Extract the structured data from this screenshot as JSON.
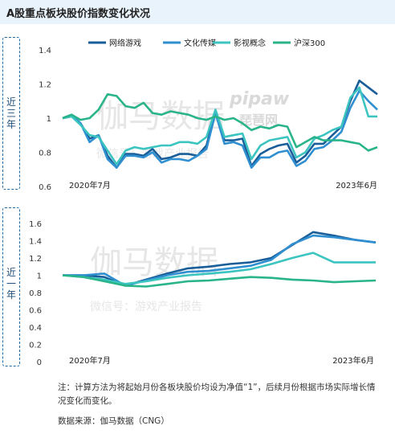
{
  "title": "A股重点板块股价指数变化状况",
  "side_labels": [
    "近三年",
    "近一年"
  ],
  "note": "注：计算方法为将起始月份各板块股价均设为净值“1”，后续月份根据市场实际增长情况变化而变化。",
  "source": "数据来源：伽马数据（CNG）",
  "watermark": {
    "main": "伽马数据",
    "sub": "微信号：游戏产业报告",
    "logo": "pipaw",
    "logo_sub": "琵琶网"
  },
  "colors": {
    "网络游戏": "#1a5e99",
    "文化传媒": "#2f8fd0",
    "影视概念": "#3cc4c0",
    "沪深300": "#2ab48a"
  },
  "chart_data": [
    {
      "type": "line",
      "title": "",
      "xlabel": "",
      "ylabel": "",
      "x_start_label": "2020年7月",
      "x_end_label": "2023年6月",
      "ylim": [
        0.6,
        1.4
      ],
      "yticks": [
        "0.6",
        "0.8",
        "1",
        "1.2",
        "1.4"
      ],
      "legend": "top-right",
      "grid": false,
      "series": [
        {
          "name": "网络游戏",
          "values": [
            1.0,
            1.01,
            0.97,
            0.88,
            0.9,
            0.78,
            0.71,
            0.79,
            0.79,
            0.78,
            0.82,
            0.76,
            0.77,
            0.79,
            0.79,
            0.78,
            0.84,
            1.04,
            0.87,
            0.87,
            0.88,
            0.72,
            0.79,
            0.82,
            0.84,
            0.85,
            0.74,
            0.78,
            0.85,
            0.85,
            0.9,
            0.95,
            1.1,
            1.22,
            1.18,
            1.14
          ]
        },
        {
          "name": "文化传媒",
          "values": [
            1.0,
            1.02,
            0.97,
            0.86,
            0.9,
            0.76,
            0.71,
            0.78,
            0.78,
            0.77,
            0.8,
            0.74,
            0.76,
            0.76,
            0.75,
            0.78,
            0.82,
            1.03,
            0.85,
            0.86,
            0.84,
            0.71,
            0.77,
            0.77,
            0.8,
            0.81,
            0.72,
            0.75,
            0.82,
            0.83,
            0.87,
            0.92,
            1.06,
            1.16,
            1.1,
            1.05
          ]
        },
        {
          "name": "影视概念",
          "values": [
            1.0,
            1.01,
            0.96,
            0.9,
            0.89,
            0.81,
            0.73,
            0.81,
            0.83,
            0.82,
            0.83,
            0.84,
            0.84,
            0.86,
            0.86,
            0.85,
            0.89,
            1.05,
            0.89,
            0.9,
            0.91,
            0.76,
            0.84,
            0.87,
            0.88,
            0.89,
            0.77,
            0.8,
            0.88,
            0.9,
            0.93,
            0.95,
            1.12,
            1.18,
            1.01,
            1.01
          ]
        },
        {
          "name": "沪深300",
          "values": [
            1.0,
            1.02,
            0.99,
            1.0,
            1.05,
            1.14,
            1.13,
            1.07,
            1.06,
            1.09,
            1.03,
            1.02,
            1.04,
            1.03,
            1.02,
            1.0,
            0.99,
            1.01,
            0.99,
            1.0,
            0.97,
            0.93,
            0.95,
            0.94,
            0.96,
            0.95,
            0.83,
            0.86,
            0.89,
            0.87,
            0.87,
            0.87,
            0.86,
            0.85,
            0.81,
            0.83
          ]
        }
      ]
    },
    {
      "type": "line",
      "title": "",
      "xlabel": "",
      "ylabel": "",
      "x_start_label": "2020年7月",
      "x_end_label": "2023年6月",
      "ylim": [
        0,
        1.6
      ],
      "yticks": [
        "0",
        "0.2",
        "0.4",
        "0.6",
        "0.8",
        "1",
        "1.2",
        "1.4",
        "1.6"
      ],
      "legend": "none",
      "grid": false,
      "series": [
        {
          "name": "网络游戏",
          "values": [
            1.0,
            1.0,
            0.98,
            0.88,
            0.95,
            1.02,
            1.08,
            1.1,
            1.13,
            1.15,
            1.2,
            1.35,
            1.5,
            1.46,
            1.41,
            1.38
          ]
        },
        {
          "name": "文化传媒",
          "values": [
            1.0,
            1.0,
            1.02,
            0.88,
            0.94,
            1.0,
            1.04,
            1.05,
            1.08,
            1.11,
            1.18,
            1.36,
            1.46,
            1.44,
            1.41,
            1.38
          ]
        },
        {
          "name": "影视概念",
          "values": [
            1.0,
            0.98,
            0.95,
            0.9,
            0.93,
            0.97,
            1.0,
            1.02,
            1.04,
            1.07,
            1.13,
            1.2,
            1.26,
            1.15,
            1.15,
            1.15
          ]
        },
        {
          "name": "沪深300",
          "values": [
            1.0,
            0.98,
            0.93,
            0.88,
            0.87,
            0.9,
            0.93,
            0.94,
            0.96,
            0.98,
            0.97,
            0.95,
            0.94,
            0.92,
            0.93,
            0.94
          ]
        }
      ]
    }
  ]
}
